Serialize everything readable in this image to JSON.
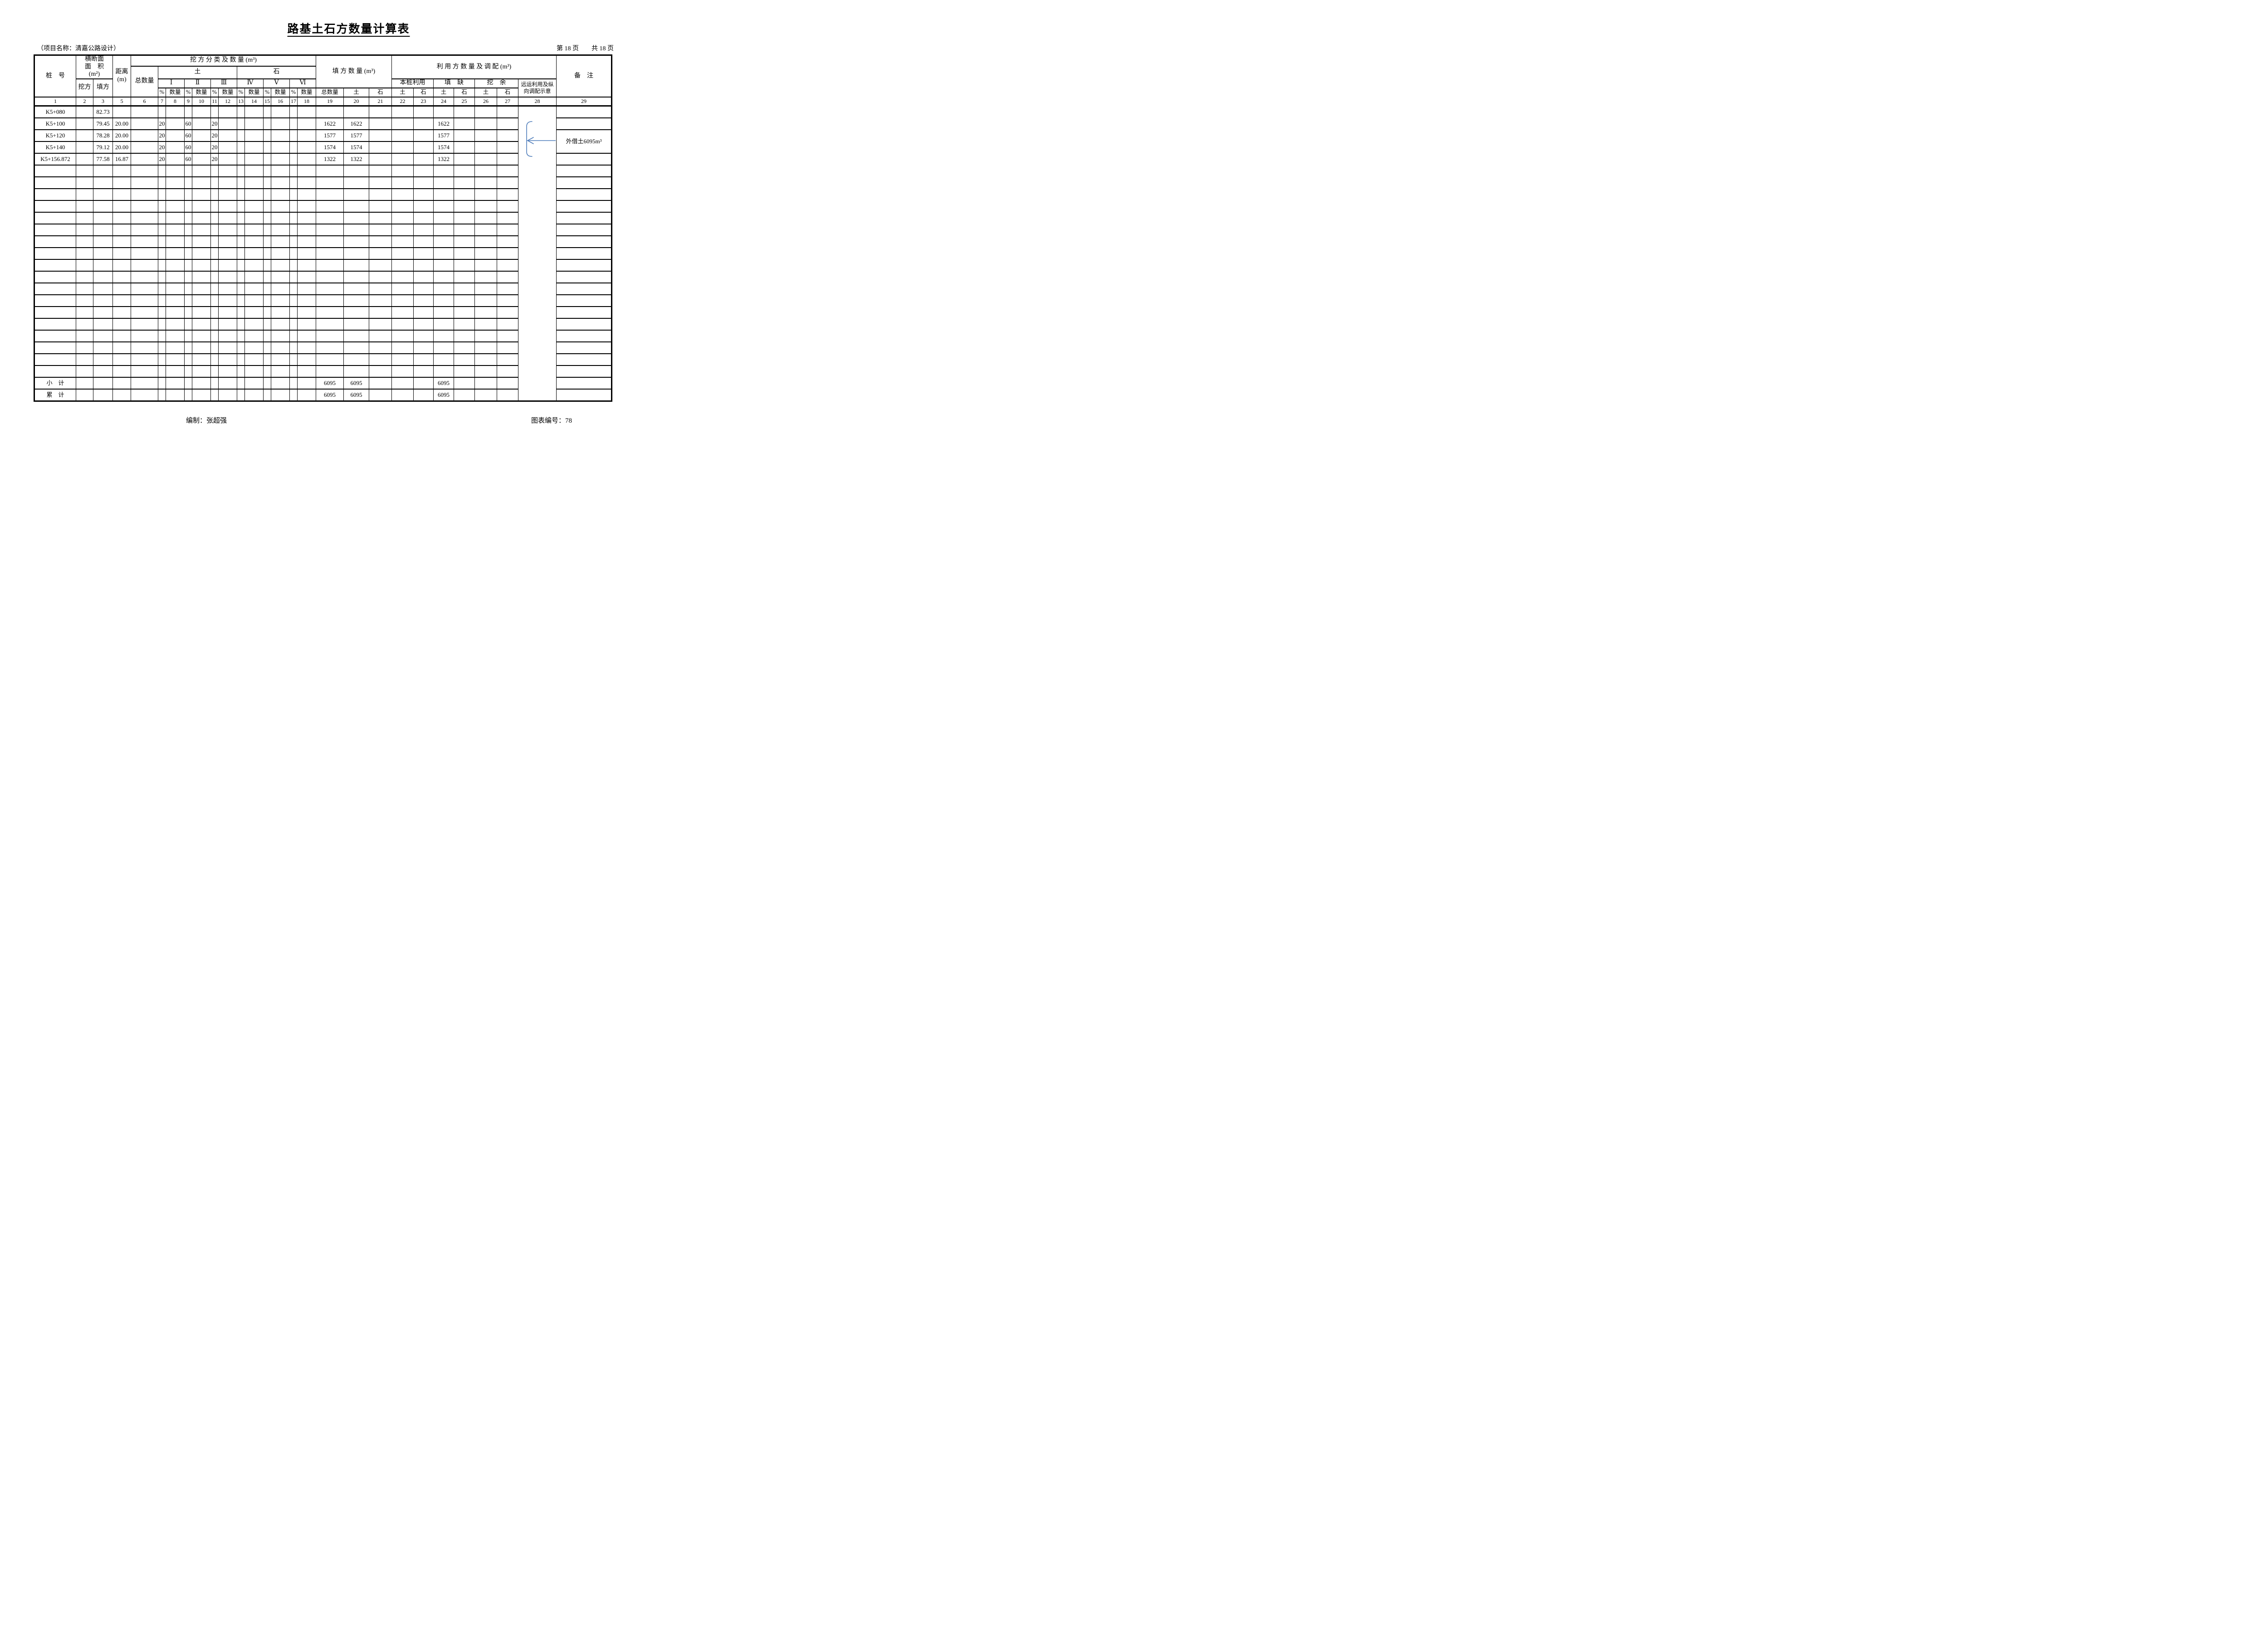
{
  "page": {
    "title": "路基土石方数量计算表",
    "project_label": "（项目名称：清嘉公路设计）",
    "page_info": "第 18 页　　共 18 页",
    "prepared_by": "编制：张超强",
    "chart_number": "图表编号：78"
  },
  "header": {
    "pile": "桩　号",
    "cross_section": "横断面\n面　积\n(m²)",
    "cut": "挖方",
    "fill": "填方",
    "distance": "距离\n(m)",
    "excavation_group": "挖 方 分 类 及 数 量  (m³)",
    "soil": "土",
    "rock": "石",
    "classes": [
      "Ⅰ",
      "Ⅱ",
      "Ⅲ",
      "Ⅳ",
      "Ⅴ",
      "Ⅵ"
    ],
    "pct": "%",
    "qty": "数量",
    "total_qty": "总数量",
    "fill_group": "填 方 数 量 (m³)",
    "utilize_group": "利 用 方 数 量 及 调 配 (m³)",
    "on_pile_use": "本桩利用",
    "fill_shortage": "填　缺",
    "cut_surplus": "挖　余",
    "haul_note": "远运利用及纵\n向调配示意",
    "remark": "备　注"
  },
  "table": {
    "columns": [
      "1",
      "2",
      "3",
      "5",
      "6",
      "7",
      "8",
      "9",
      "10",
      "11",
      "12",
      "13",
      "14",
      "15",
      "16",
      "17",
      "18",
      "19",
      "20",
      "21",
      "22",
      "23",
      "24",
      "25",
      "26",
      "27",
      "28",
      "29"
    ],
    "body_rows": [
      {
        "1": "K5+080",
        "3": "82.73"
      },
      {
        "1": "K5+100",
        "3": "79.45",
        "5": "20.00",
        "7": "20",
        "9": "60",
        "11": "20",
        "19": "1622",
        "20": "1622",
        "24": "1622"
      },
      {
        "1": "K5+120",
        "3": "78.28",
        "5": "20.00",
        "7": "20",
        "9": "60",
        "11": "20",
        "19": "1577",
        "20": "1577",
        "24": "1577"
      },
      {
        "1": "K5+140",
        "3": "79.12",
        "5": "20.00",
        "7": "20",
        "9": "60",
        "11": "20",
        "19": "1574",
        "20": "1574",
        "24": "1574"
      },
      {
        "1": "K5+156.872",
        "3": "77.58",
        "5": "16.87",
        "7": "20",
        "9": "60",
        "11": "20",
        "19": "1322",
        "20": "1322",
        "24": "1322"
      },
      {},
      {},
      {},
      {},
      {},
      {},
      {},
      {},
      {},
      {},
      {},
      {},
      {},
      {},
      {},
      {},
      {},
      {}
    ],
    "summary_rows": [
      {
        "1": "小　计",
        "19": "6095",
        "20": "6095",
        "24": "6095"
      },
      {
        "1": "累　计",
        "19": "6095",
        "20": "6095",
        "24": "6095"
      }
    ],
    "remark_merge": {
      "row_index": 2,
      "rowspan": 2,
      "text": "外借土6095m³"
    },
    "annotation_color": "#4f7dbb"
  }
}
